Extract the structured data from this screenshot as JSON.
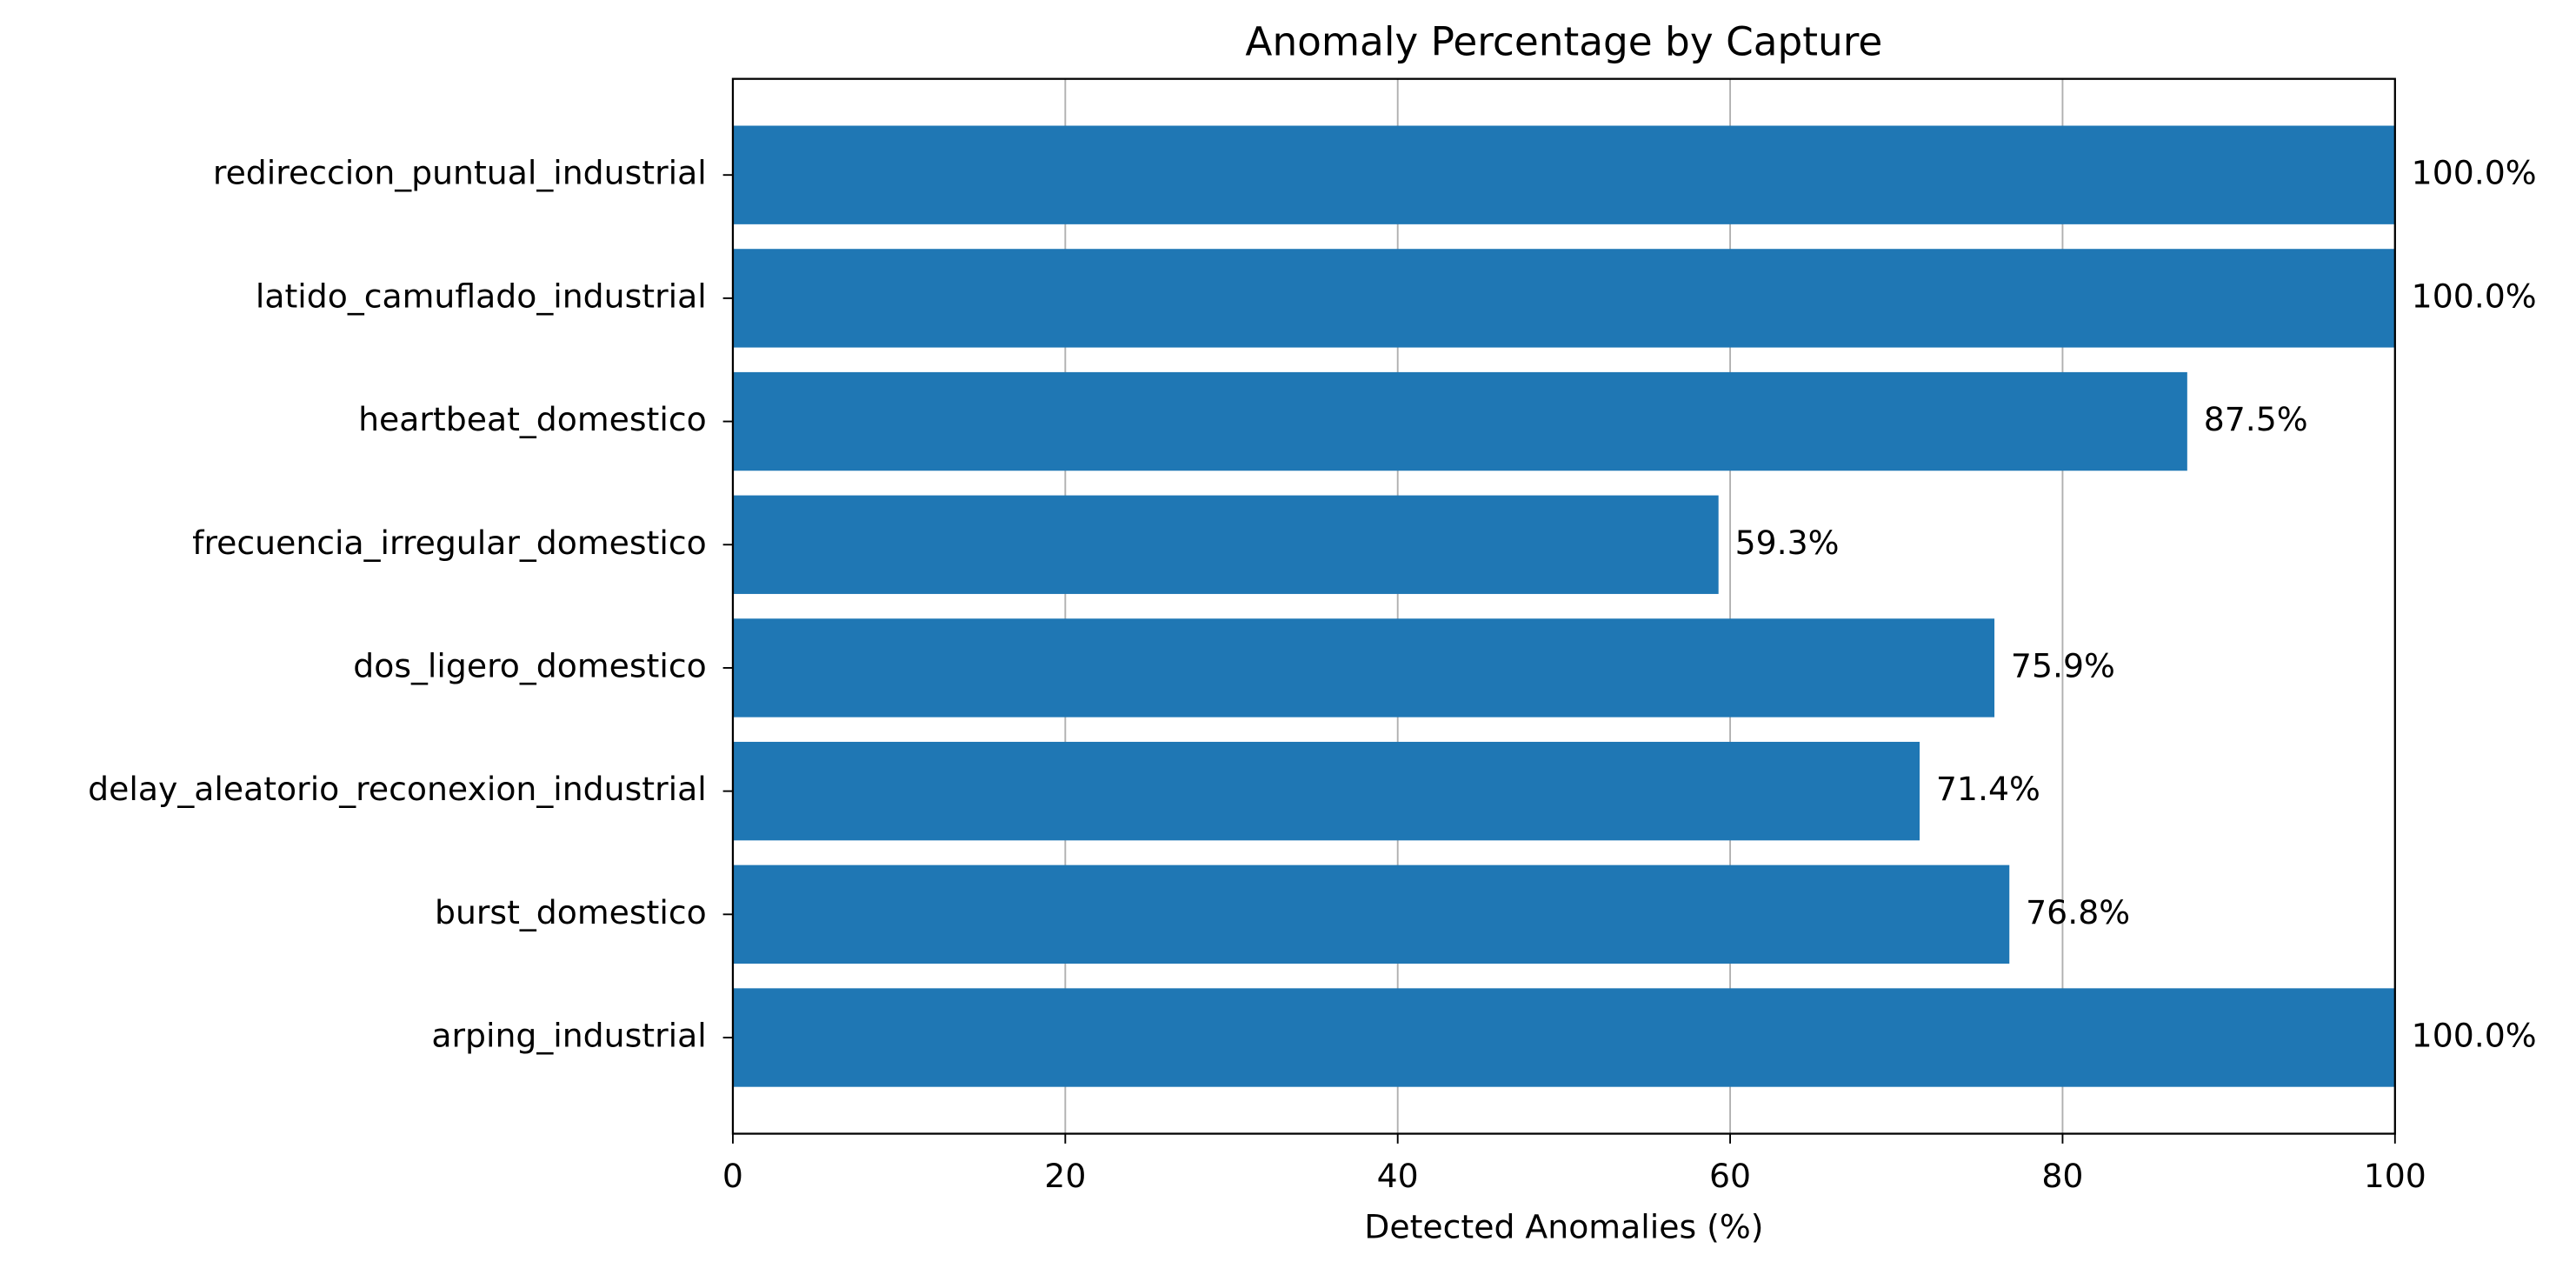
{
  "chart_data": {
    "type": "barh",
    "title": "Anomaly Percentage by Capture",
    "xlabel": "Detected Anomalies (%)",
    "categories": [
      "arping_industrial",
      "burst_domestico",
      "delay_aleatorio_reconexion_industrial",
      "dos_ligero_domestico",
      "frecuencia_irregular_domestico",
      "heartbeat_domestico",
      "latido_camuflado_industrial",
      "redireccion_puntual_industrial"
    ],
    "values": [
      100.0,
      76.8,
      71.4,
      75.9,
      59.3,
      87.5,
      100.0,
      100.0
    ],
    "value_labels": [
      "100.0%",
      "76.8%",
      "71.4%",
      "75.9%",
      "59.3%",
      "87.5%",
      "100.0%",
      "100.0%"
    ],
    "color": "#1f77b4",
    "xlim": [
      0,
      100
    ],
    "xticks": [
      0,
      20,
      40,
      60,
      80,
      100
    ],
    "grid": true
  }
}
